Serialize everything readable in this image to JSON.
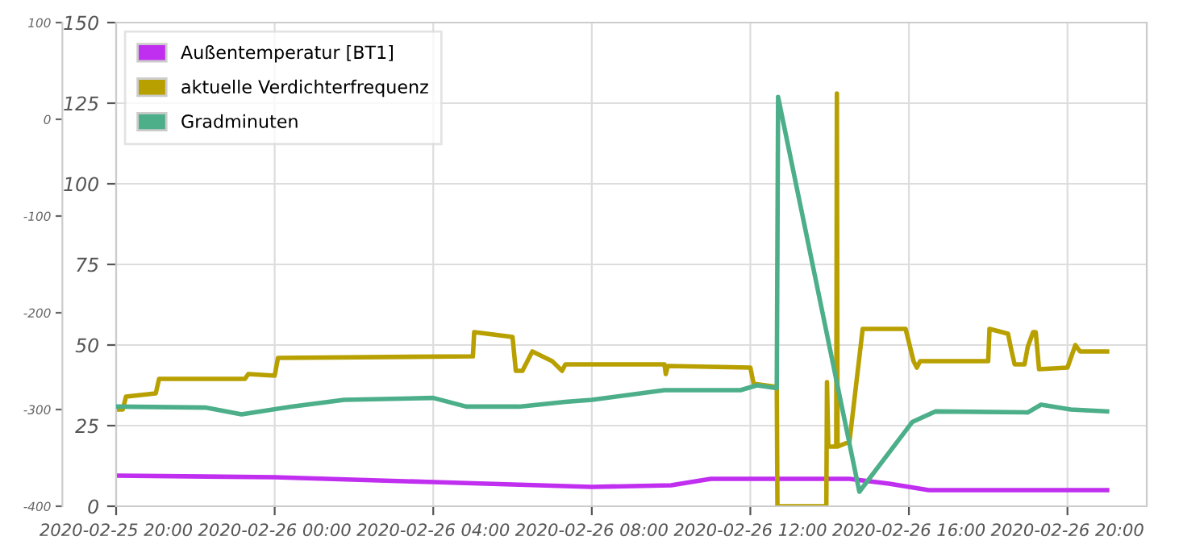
{
  "chart_data": {
    "type": "line",
    "xlim": [
      "2020-02-25T20:00",
      "2020-02-26T22:00"
    ],
    "xticks": [
      {
        "value": "2020-02-25T20:00",
        "label": "2020-02-25 20:00"
      },
      {
        "value": "2020-02-26T00:00",
        "label": "2020-02-26 00:00"
      },
      {
        "value": "2020-02-26T04:00",
        "label": "2020-02-26 04:00"
      },
      {
        "value": "2020-02-26T08:00",
        "label": "2020-02-26 08:00"
      },
      {
        "value": "2020-02-26T12:00",
        "label": "2020-02-26 12:00"
      },
      {
        "value": "2020-02-26T16:00",
        "label": "2020-02-26 16:00"
      },
      {
        "value": "2020-02-26T20:00",
        "label": "2020-02-26 20:00"
      }
    ],
    "ylim": [
      0,
      150
    ],
    "yticks": [
      0,
      25,
      50,
      75,
      100,
      125,
      150
    ],
    "y2lim": [
      -400,
      100
    ],
    "y2ticks": [
      -400,
      -300,
      -200,
      -100,
      0,
      100
    ],
    "grid": true,
    "legend": "top left",
    "marker": "none",
    "line_style": "solid",
    "series": [
      {
        "name": "Außentemperatur [BT1]",
        "color": "#c02ef0",
        "x": [
          "2020-02-25T20:00",
          "2020-02-26T00:00",
          "2020-02-26T04:00",
          "2020-02-26T08:00",
          "2020-02-26T10:00",
          "2020-02-26T11:00",
          "2020-02-26T14:30",
          "2020-02-26T15:30",
          "2020-02-26T16:30",
          "2020-02-26T21:00"
        ],
        "values": [
          9.5,
          9,
          7.5,
          6,
          6.5,
          8.5,
          8.5,
          7,
          5,
          5
        ]
      },
      {
        "name": "aktuelle Verdichterfrequenz",
        "color": "#b8a000",
        "x": [
          "2020-02-25T20:00",
          "2020-02-25T20:10",
          "2020-02-25T20:15",
          "2020-02-25T21:00",
          "2020-02-25T21:05",
          "2020-02-25T23:15",
          "2020-02-25T23:20",
          "2020-02-26T00:00",
          "2020-02-26T00:05",
          "2020-02-26T05:00",
          "2020-02-26T05:02",
          "2020-02-26T06:00",
          "2020-02-26T06:05",
          "2020-02-26T06:15",
          "2020-02-26T06:30",
          "2020-02-26T07:00",
          "2020-02-26T07:15",
          "2020-02-26T07:20",
          "2020-02-26T09:50",
          "2020-02-26T09:52",
          "2020-02-26T09:55",
          "2020-02-26T12:00",
          "2020-02-26T12:05",
          "2020-02-26T12:40",
          "2020-02-26T12:41",
          "2020-02-26T13:55",
          "2020-02-26T13:56",
          "2020-02-26T13:58",
          "2020-02-26T14:10",
          "2020-02-26T14:11",
          "2020-02-26T14:12",
          "2020-02-26T14:30",
          "2020-02-26T14:50",
          "2020-02-26T15:55",
          "2020-02-26T16:07",
          "2020-02-26T16:12",
          "2020-02-26T16:17",
          "2020-02-26T18:00",
          "2020-02-26T18:02",
          "2020-02-26T18:30",
          "2020-02-26T18:35",
          "2020-02-26T18:40",
          "2020-02-26T18:55",
          "2020-02-26T19:00",
          "2020-02-26T19:08",
          "2020-02-26T19:12",
          "2020-02-26T19:17",
          "2020-02-26T20:00",
          "2020-02-26T20:12",
          "2020-02-26T20:19",
          "2020-02-26T21:00"
        ],
        "values": [
          30,
          30,
          34,
          35,
          39.5,
          39.5,
          41,
          40.5,
          46,
          46.5,
          54,
          52.5,
          42,
          42,
          48,
          45,
          42,
          44,
          44,
          41,
          43.5,
          43,
          38,
          37,
          0,
          0,
          38.5,
          18.5,
          18.5,
          128,
          18.5,
          20,
          55,
          55,
          45,
          43,
          45,
          45,
          55,
          53.5,
          48.5,
          44,
          44,
          49.5,
          54,
          54,
          42.5,
          43,
          50,
          48,
          48
        ]
      },
      {
        "name": "Gradminuten",
        "color": "#4caf8a",
        "axis": "y2",
        "x": [
          "2020-02-25T20:00",
          "2020-02-25T22:15",
          "2020-02-25T23:10",
          "2020-02-26T00:25",
          "2020-02-26T01:45",
          "2020-02-26T04:00",
          "2020-02-26T04:50",
          "2020-02-26T06:10",
          "2020-02-26T07:20",
          "2020-02-26T08:00",
          "2020-02-26T09:50",
          "2020-02-26T11:45",
          "2020-02-26T12:10",
          "2020-02-26T12:40",
          "2020-02-26T12:42",
          "2020-02-26T14:45",
          "2020-02-26T16:05",
          "2020-02-26T16:40",
          "2020-02-26T19:00",
          "2020-02-26T19:20",
          "2020-02-26T20:05",
          "2020-02-26T21:00"
        ],
        "values": [
          -297,
          -298,
          -305,
          -297,
          -290,
          -288,
          -297,
          -297,
          -292,
          -290,
          -280,
          -280,
          -275,
          -278,
          23,
          -385,
          -313,
          -302,
          -303,
          -295,
          -300,
          -302
        ]
      }
    ]
  }
}
